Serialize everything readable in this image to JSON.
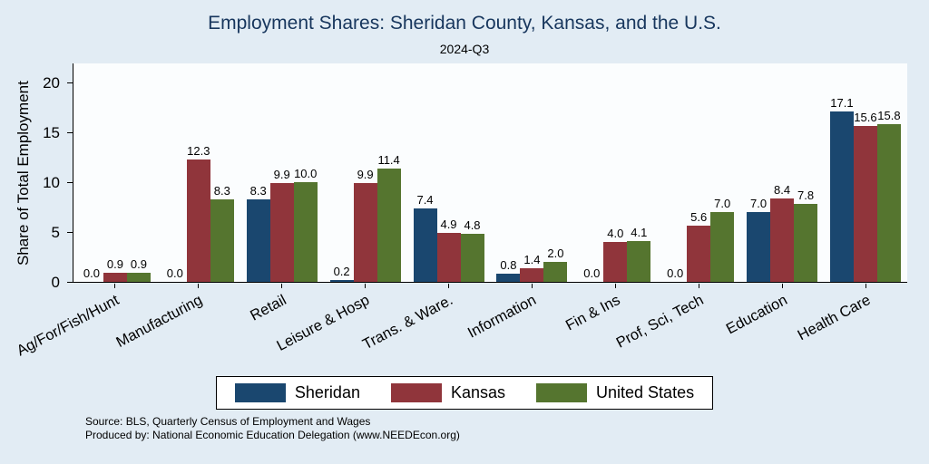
{
  "title": "Employment Shares: Sheridan County, Kansas, and the U.S.",
  "subtitle": "2024-Q3",
  "source_line1": "Source: BLS, Quarterly Census of Employment and Wages",
  "source_line2": "Produced by: National Economic Education Delegation (www.NEEDEcon.org)",
  "colors": {
    "background": "#e2ecf4",
    "plot_background": "#fbfdfe",
    "title": "#17365d",
    "axis": "#000000"
  },
  "chart_data": {
    "type": "bar",
    "title": "Employment Shares: Sheridan County, Kansas, and the U.S.",
    "subtitle": "2024-Q3",
    "xlabel": "",
    "ylabel": "Share of Total Employment",
    "ylim": [
      0,
      22
    ],
    "yticks": [
      0,
      5,
      10,
      15,
      20
    ],
    "grid": false,
    "legend_position": "bottom",
    "categories": [
      "Ag/For/Fish/Hunt",
      "Manufacturing",
      "Retail",
      "Leisure & Hosp",
      "Trans. & Ware.",
      "Information",
      "Fin & Ins",
      "Prof, Sci, Tech",
      "Education",
      "Health Care"
    ],
    "series": [
      {
        "name": "Sheridan",
        "color": "#1a476f",
        "values": [
          0.0,
          0.0,
          8.3,
          0.2,
          7.4,
          0.8,
          0.0,
          0.0,
          7.0,
          17.1
        ]
      },
      {
        "name": "Kansas",
        "color": "#90353b",
        "values": [
          0.9,
          12.3,
          9.9,
          9.9,
          4.9,
          1.4,
          4.0,
          5.6,
          8.4,
          15.6
        ]
      },
      {
        "name": "United States",
        "color": "#55752f",
        "values": [
          0.9,
          8.3,
          10.0,
          11.4,
          4.8,
          2.0,
          4.1,
          7.0,
          7.8,
          15.8
        ]
      }
    ]
  }
}
